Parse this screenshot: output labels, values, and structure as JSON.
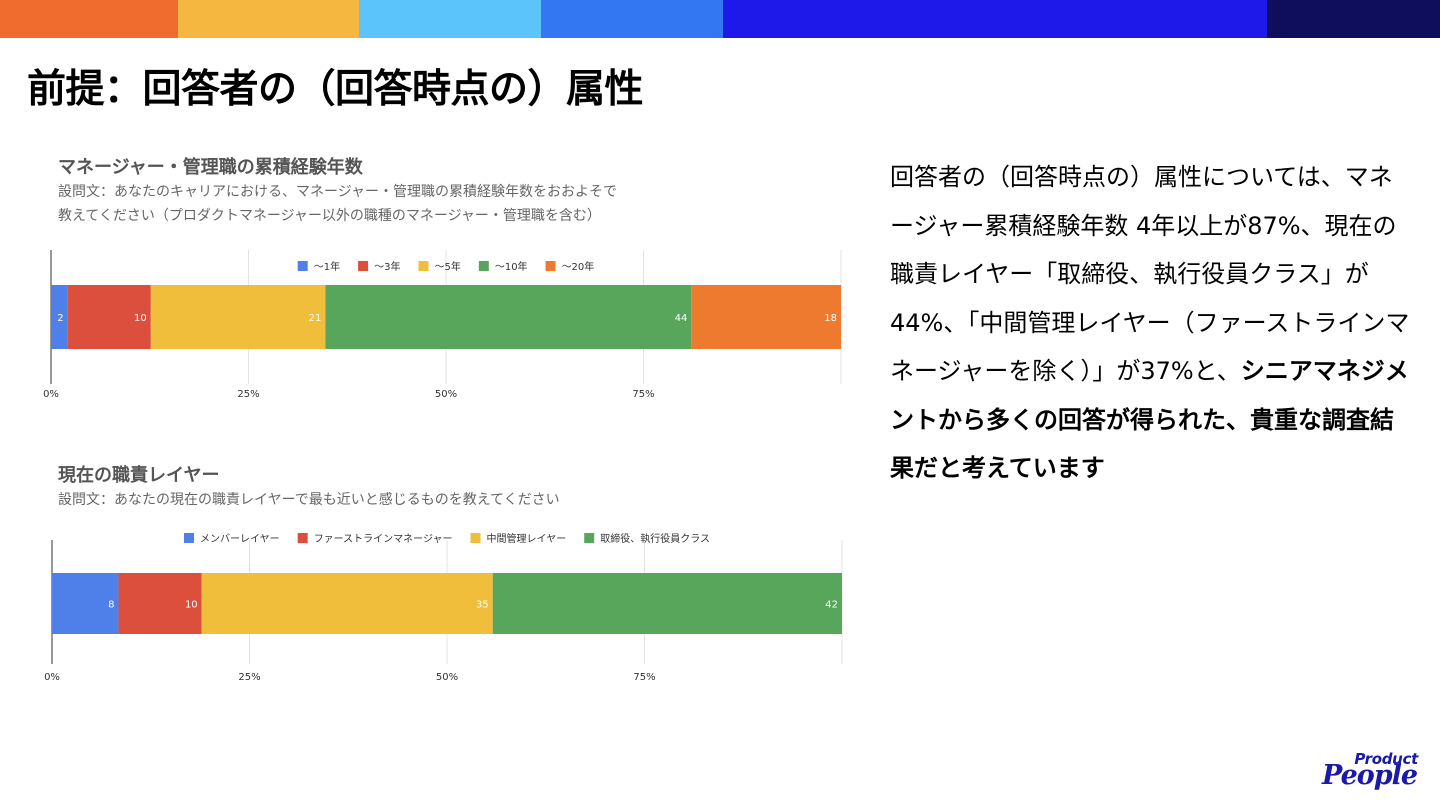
{
  "top_bar_colors": [
    "#EF6B2E",
    "#F5B73F",
    "#5BC4FA",
    "#3377F2",
    "#1E19E8",
    "#0F0E5C"
  ],
  "slide_title": "前提：回答者の（回答時点の）属性",
  "chart1": {
    "title": "マネージャー・管理職の累積経験年数",
    "question_line1": "設問文：あなたのキャリアにおける、マネージャー・管理職の累積経験年数をおおよそで",
    "question_line2": "教えてください（プロダクトマネージャー以外の職種のマネージャー・管理職を含む）"
  },
  "chart2": {
    "title": "現在の職責レイヤー",
    "question_line1": "設問文：あなたの現在の職責レイヤーで最も近いと感じるものを教えてください"
  },
  "chart_data": [
    {
      "type": "bar",
      "orientation": "horizontal",
      "stacked": "percent",
      "title": "マネージャー・管理職の累積経験年数",
      "legend_position": "top",
      "series": [
        {
          "name": "〜1年",
          "value": 2,
          "color": "#4F7FE8"
        },
        {
          "name": "〜3年",
          "value": 10,
          "color": "#DB4F3C"
        },
        {
          "name": "〜5年",
          "value": 21,
          "color": "#F1BE3C"
        },
        {
          "name": "〜10年",
          "value": 44,
          "color": "#58A55C"
        },
        {
          "name": "〜20年",
          "value": 18,
          "color": "#EE7A2F"
        }
      ],
      "x_ticks": [
        "0%",
        "25%",
        "50%",
        "75%"
      ],
      "xlim": [
        0,
        100
      ],
      "grid": true
    },
    {
      "type": "bar",
      "orientation": "horizontal",
      "stacked": "percent",
      "title": "現在の職責レイヤー",
      "legend_position": "top",
      "series": [
        {
          "name": "メンバーレイヤー",
          "value": 8,
          "color": "#4F7FE8"
        },
        {
          "name": "ファーストラインマネージャー",
          "value": 10,
          "color": "#DB4F3C"
        },
        {
          "name": "中間管理レイヤー",
          "value": 35,
          "color": "#F1BE3C"
        },
        {
          "name": "取締役、執行役員クラス",
          "value": 42,
          "color": "#58A55C"
        }
      ],
      "x_ticks": [
        "0%",
        "25%",
        "50%",
        "75%"
      ],
      "xlim": [
        0,
        100
      ],
      "grid": true
    }
  ],
  "summary": {
    "part1": "回答者の（回答時点の）属性については、マネージャー累積経験年数 4年以上が87%、現在の職責レイヤー「取締役、執行役員クラス」が44%、「中間管理レイヤー（ファーストラインマネージャーを除く）」が37%と、",
    "part2": "シニアマネジメントから多くの回答が得られた、貴重な調査結果だと考えています"
  },
  "brand": {
    "line1": "Product",
    "line2": "People"
  }
}
